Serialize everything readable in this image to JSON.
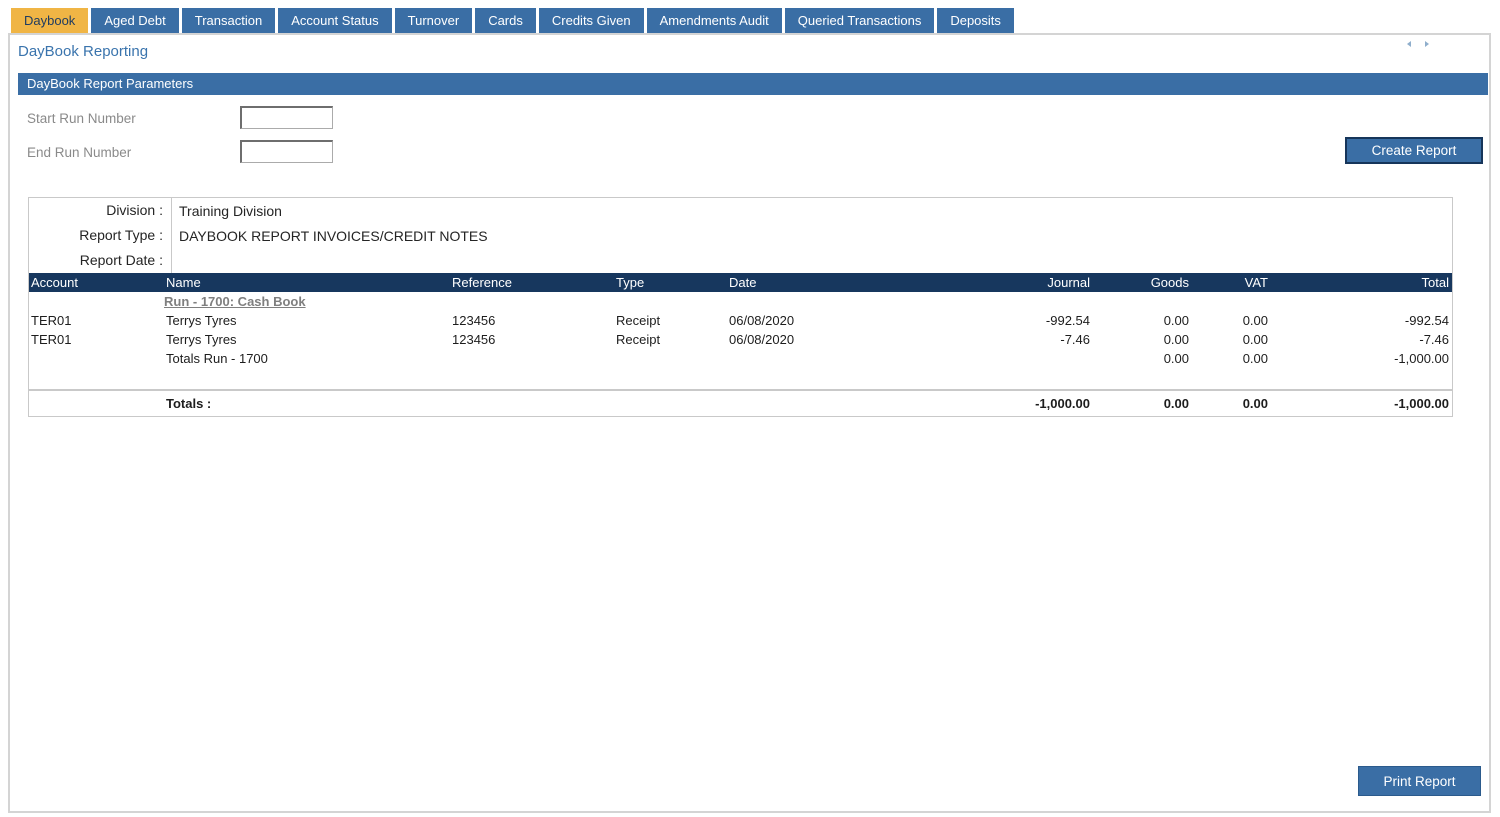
{
  "tabs": [
    {
      "label": "Daybook",
      "active": true
    },
    {
      "label": "Aged Debt",
      "active": false
    },
    {
      "label": "Transaction",
      "active": false
    },
    {
      "label": "Account Status",
      "active": false
    },
    {
      "label": "Turnover",
      "active": false
    },
    {
      "label": "Cards",
      "active": false
    },
    {
      "label": "Credits Given",
      "active": false
    },
    {
      "label": "Amendments Audit",
      "active": false
    },
    {
      "label": "Queried Transactions",
      "active": false
    },
    {
      "label": "Deposits",
      "active": false
    }
  ],
  "page": {
    "title": "DayBook Reporting"
  },
  "parameters": {
    "header": "DayBook Report Parameters",
    "start_run_label": "Start Run Number",
    "start_run_value": "",
    "end_run_label": "End Run Number",
    "end_run_value": "",
    "create_button": "Create Report"
  },
  "report": {
    "meta": [
      {
        "label": "Division :",
        "value": "Training Division"
      },
      {
        "label": "Report Type :",
        "value": "DAYBOOK REPORT INVOICES/CREDIT NOTES"
      },
      {
        "label": "Report Date :",
        "value": ""
      }
    ],
    "columns": [
      "Account",
      "Name",
      "Reference",
      "Type",
      "Date",
      "Journal",
      "Goods",
      "VAT",
      "Total"
    ],
    "group_header": "Run - 1700: Cash Book",
    "rows": [
      {
        "account": "TER01",
        "name": "Terrys Tyres",
        "reference": "123456",
        "type": "Receipt",
        "date": "06/08/2020",
        "journal": "-992.54",
        "goods": "0.00",
        "vat": "0.00",
        "total": "-992.54"
      },
      {
        "account": "TER01",
        "name": "Terrys Tyres",
        "reference": "123456",
        "type": "Receipt",
        "date": "06/08/2020",
        "journal": "-7.46",
        "goods": "0.00",
        "vat": "0.00",
        "total": "-7.46"
      }
    ],
    "group_totals": {
      "name": "Totals Run - 1700",
      "journal": "",
      "goods": "0.00",
      "vat": "0.00",
      "total": "-1,000.00"
    },
    "totals": {
      "label": "Totals :",
      "journal": "-1,000.00",
      "goods": "0.00",
      "vat": "0.00",
      "total": "-1,000.00"
    }
  },
  "footer": {
    "print_button": "Print Report"
  },
  "colors": {
    "tab_blue": "#3A6EA5",
    "active_tab_amber": "#F0B545",
    "table_header_navy": "#17375E",
    "title_blue": "#3A74AD",
    "button_blue": "#3A6EA5",
    "group_header_gray": "#7F7F7F"
  }
}
